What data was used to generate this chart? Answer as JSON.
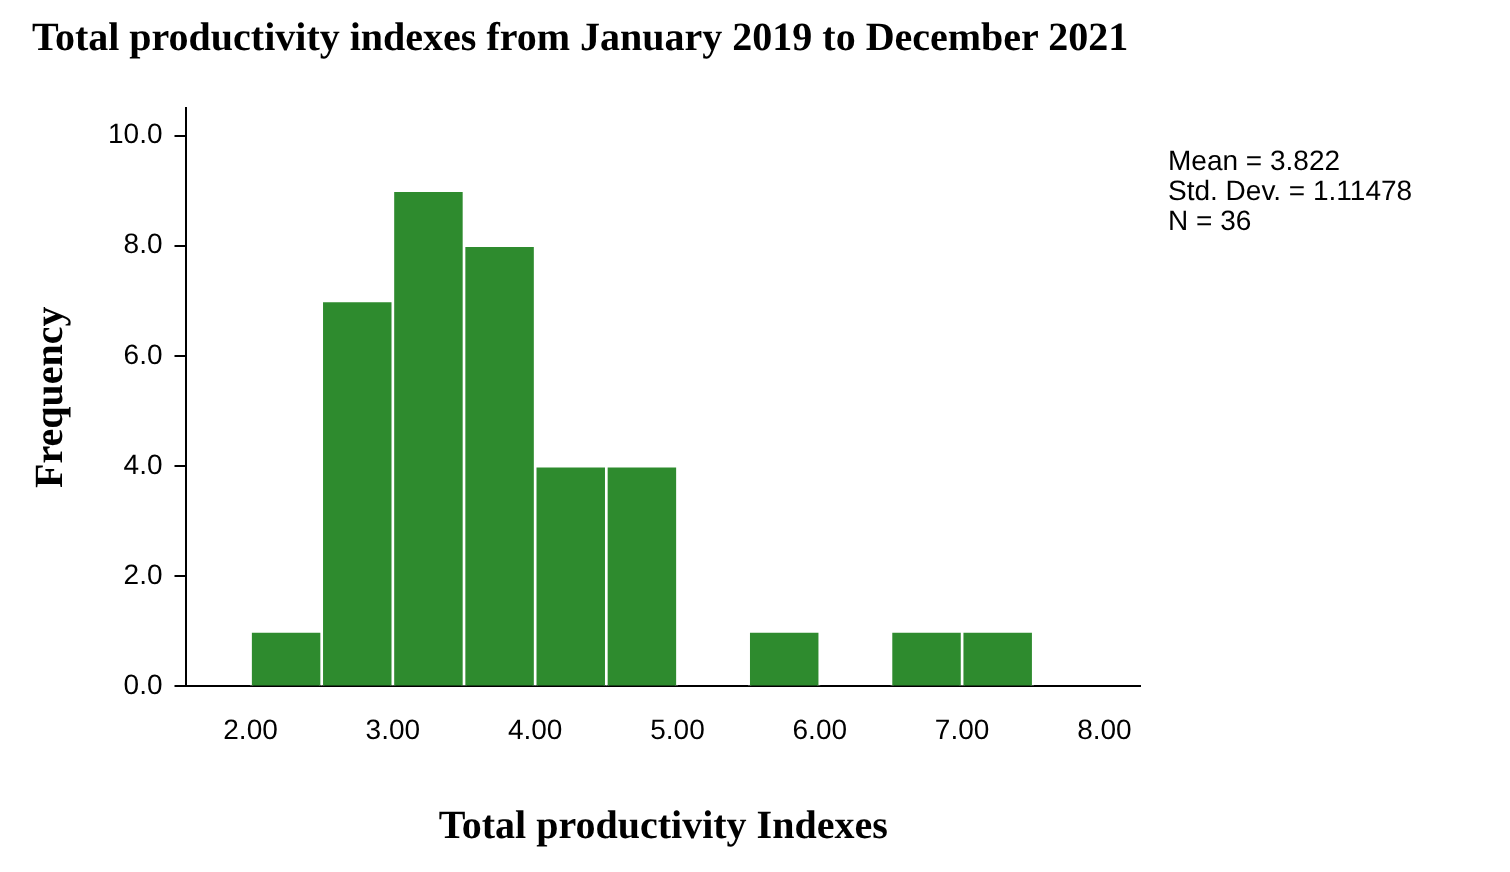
{
  "chart_data": {
    "type": "histogram",
    "title": "Total productivity indexes from January 2019 to December 2021",
    "xlabel": "Total productivity Indexes",
    "ylabel": "Frequency",
    "bins": [
      2.0,
      2.5,
      3.0,
      3.5,
      4.0,
      4.5,
      5.0,
      5.5,
      6.0,
      6.5,
      7.0,
      7.5
    ],
    "values": [
      1,
      7,
      9,
      8,
      4,
      4,
      0,
      1,
      0,
      1,
      1
    ],
    "color": "#2e8b2e",
    "xlim": [
      1.55,
      8.25
    ],
    "xticks": [
      {
        "value": 2,
        "label": "2.00"
      },
      {
        "value": 3,
        "label": "3.00"
      },
      {
        "value": 4,
        "label": "4.00"
      },
      {
        "value": 5,
        "label": "5.00"
      },
      {
        "value": 6,
        "label": "6.00"
      },
      {
        "value": 7,
        "label": "7.00"
      },
      {
        "value": 8,
        "label": "8.00"
      }
    ],
    "ylim": [
      0,
      10.5
    ],
    "yticks": [
      {
        "value": 0,
        "label": "0.0"
      },
      {
        "value": 2,
        "label": "2.0"
      },
      {
        "value": 4,
        "label": "4.0"
      },
      {
        "value": 6,
        "label": "6.0"
      },
      {
        "value": 8,
        "label": "8.0"
      },
      {
        "value": 10,
        "label": "10.0"
      }
    ],
    "grid": false,
    "legend": false,
    "annotations": [
      "Mean = 3.822",
      "Std. Dev. = 1.11478",
      "N = 36"
    ]
  }
}
